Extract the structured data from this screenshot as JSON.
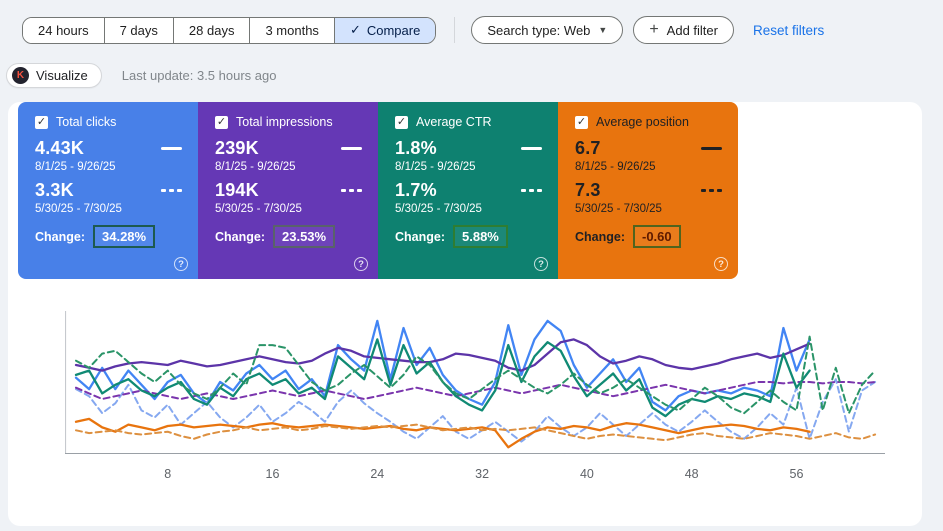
{
  "toolbar": {
    "ranges": [
      {
        "label": "24 hours"
      },
      {
        "label": "7 days"
      },
      {
        "label": "28 days"
      },
      {
        "label": "3 months"
      }
    ],
    "compare": {
      "label": "Compare",
      "check": "✓"
    },
    "search_type": {
      "label": "Search type: Web",
      "caret": "▼"
    },
    "add_filter": {
      "icon": "+",
      "label": "Add filter"
    },
    "reset_filters": "Reset filters"
  },
  "subbar": {
    "visualize": {
      "label": "Visualize",
      "badge": "K"
    },
    "last_update": "Last update: 3.5 hours ago"
  },
  "glyphs": {
    "checkbox_check": "✓",
    "question": "?"
  },
  "cards": [
    {
      "label": "Total clicks",
      "color": "#4880e8",
      "text_color": "#ffffff",
      "current": {
        "value": "4.43K",
        "range": "8/1/25 - 9/26/25"
      },
      "previous": {
        "value": "3.3K",
        "range": "5/30/25 - 7/30/25"
      },
      "change_label": "Change:",
      "change_value": "34.28%",
      "change_box_border": "#1d5a4f"
    },
    {
      "label": "Total impressions",
      "color": "#6538b5",
      "text_color": "#ffffff",
      "current": {
        "value": "239K",
        "range": "8/1/25 - 9/26/25"
      },
      "previous": {
        "value": "194K",
        "range": "5/30/25 - 7/30/25"
      },
      "change_label": "Change:",
      "change_value": "23.53%",
      "change_box_border": "#59626a"
    },
    {
      "label": "Average CTR",
      "color": "#0e8170",
      "text_color": "#ffffff",
      "current": {
        "value": "1.8%",
        "range": "8/1/25 - 9/26/25"
      },
      "previous": {
        "value": "1.7%",
        "range": "5/30/25 - 7/30/25"
      },
      "change_label": "Change:",
      "change_value": "5.88%",
      "change_box_border": "#2e7d32"
    },
    {
      "label": "Average position",
      "color": "#e8740e",
      "text_color": "#202124",
      "current": {
        "value": "6.7",
        "range": "8/1/25 - 9/26/25"
      },
      "previous": {
        "value": "7.3",
        "range": "5/30/25 - 7/30/25"
      },
      "change_label": "Change:",
      "change_value": "-0.60",
      "change_value_color": "#5d1a00",
      "change_box_border": "#50641e"
    }
  ],
  "chart_data": {
    "type": "line",
    "title": "",
    "xlabel": "",
    "ylabel": "",
    "x_ticks": [
      8,
      16,
      24,
      32,
      40,
      48,
      56
    ],
    "x_range": [
      1,
      62
    ],
    "grid": false,
    "legend_position": "none",
    "y_axis": "hidden (series normalized to percent of plot height, 0 = bottom axis, 100 = plot top)",
    "series": [
      {
        "name": "Total clicks (8/1/25 - 9/26/25)",
        "color": "#4285f4",
        "dash": false,
        "values": [
          53,
          45,
          60,
          45,
          58,
          48,
          38,
          50,
          55,
          42,
          35,
          50,
          44,
          56,
          62,
          52,
          58,
          45,
          52,
          40,
          76,
          66,
          58,
          93,
          52,
          88,
          62,
          74,
          55,
          44,
          38,
          34,
          50,
          90,
          55,
          80,
          93,
          86,
          62,
          46,
          56,
          66,
          50,
          60,
          36,
          30,
          40,
          44,
          42,
          44,
          42,
          46,
          44,
          40,
          88,
          58,
          80
        ]
      },
      {
        "name": "Total clicks (5/30/25 - 7/30/25)",
        "color": "#85a8f0",
        "dash": true,
        "values": [
          45,
          40,
          28,
          35,
          48,
          30,
          25,
          34,
          20,
          28,
          36,
          25,
          18,
          25,
          34,
          22,
          28,
          36,
          30,
          22,
          36,
          44,
          35,
          28,
          22,
          15,
          10,
          18,
          26,
          15,
          10,
          16,
          22,
          15,
          8,
          15,
          26,
          18,
          12,
          18,
          28,
          20,
          12,
          20,
          28,
          20,
          15,
          22,
          30,
          22,
          15,
          10,
          18,
          28,
          20,
          46,
          10,
          36,
          52,
          15,
          44,
          50
        ]
      },
      {
        "name": "Total impressions (8/1/25 - 9/26/25)",
        "color": "#5c34a8",
        "dash": false,
        "values": [
          62,
          60,
          58,
          61,
          63,
          64,
          63,
          62,
          65,
          63,
          61,
          62,
          64,
          66,
          68,
          66,
          64,
          63,
          65,
          70,
          74,
          72,
          68,
          67,
          66,
          65,
          64,
          64,
          66,
          70,
          69,
          67,
          65,
          60,
          58,
          62,
          70,
          78,
          80,
          76,
          68,
          63,
          65,
          68,
          66,
          62,
          60,
          59,
          61,
          63,
          66,
          68,
          70,
          67,
          69,
          73,
          77
        ]
      },
      {
        "name": "Total impressions (5/30/25 - 7/30/25)",
        "color": "#7a35ad",
        "dash": true,
        "values": [
          46,
          42,
          38,
          40,
          42,
          44,
          42,
          40,
          38,
          40,
          42,
          40,
          38,
          40,
          42,
          44,
          42,
          40,
          42,
          44,
          42,
          40,
          38,
          40,
          42,
          44,
          46,
          44,
          42,
          40,
          42,
          44,
          46,
          44,
          42,
          44,
          46,
          48,
          46,
          44,
          42,
          40,
          42,
          44,
          46,
          48,
          46,
          44,
          42,
          44,
          46,
          48,
          50,
          50,
          49,
          50,
          50,
          49,
          50,
          50,
          49,
          50
        ]
      },
      {
        "name": "Average CTR (8/1/25 - 9/26/25)",
        "color": "#108a74",
        "dash": false,
        "values": [
          55,
          58,
          42,
          48,
          52,
          44,
          40,
          46,
          50,
          38,
          34,
          46,
          40,
          52,
          56,
          48,
          52,
          42,
          46,
          38,
          68,
          60,
          52,
          80,
          48,
          76,
          56,
          64,
          50,
          40,
          34,
          30,
          44,
          76,
          50,
          68,
          78,
          72,
          54,
          40,
          48,
          56,
          44,
          52,
          32,
          26,
          34,
          38,
          36,
          40,
          38,
          42,
          40,
          36,
          70,
          46,
          58
        ]
      },
      {
        "name": "Average CTR (5/30/25 - 7/30/25)",
        "color": "#2a9468",
        "dash": true,
        "values": [
          65,
          60,
          70,
          72,
          64,
          56,
          50,
          58,
          48,
          42,
          38,
          46,
          56,
          48,
          76,
          76,
          74,
          62,
          50,
          44,
          48,
          56,
          62,
          54,
          46,
          55,
          68,
          62,
          50,
          42,
          38,
          45,
          52,
          58,
          52,
          46,
          42,
          48,
          56,
          48,
          42,
          46,
          52,
          46,
          40,
          34,
          30,
          38,
          46,
          40,
          32,
          28,
          36,
          44,
          36,
          30,
          82,
          30,
          60,
          28,
          48,
          58
        ]
      },
      {
        "name": "Average position (8/1/25 - 9/26/25)",
        "color": "#e8740e",
        "dash": false,
        "values": [
          22,
          24,
          18,
          15,
          20,
          18,
          16,
          19,
          20,
          18,
          19,
          20,
          19,
          18,
          20,
          21,
          19,
          18,
          19,
          20,
          19,
          18,
          17,
          18,
          19,
          17,
          16,
          18,
          17,
          16,
          17,
          18,
          16,
          4,
          10,
          15,
          18,
          17,
          19,
          18,
          16,
          19,
          21,
          20,
          18,
          16,
          14,
          16,
          18,
          19,
          20,
          19,
          17,
          16,
          18,
          17,
          15
        ]
      },
      {
        "name": "Average position (5/30/25 - 7/30/25)",
        "color": "#dd9040",
        "dash": true,
        "values": [
          16,
          14,
          15,
          16,
          14,
          13,
          14,
          15,
          12,
          10,
          13,
          15,
          16,
          18,
          16,
          17,
          18,
          16,
          17,
          19,
          18,
          17,
          18,
          19,
          18,
          19,
          20,
          18,
          16,
          17,
          18,
          16,
          17,
          16,
          17,
          18,
          16,
          14,
          12,
          10,
          12,
          13,
          12,
          11,
          10,
          9,
          11,
          13,
          14,
          12,
          11,
          10,
          12,
          14,
          13,
          12,
          10,
          12,
          14,
          11,
          10,
          13
        ]
      }
    ]
  }
}
